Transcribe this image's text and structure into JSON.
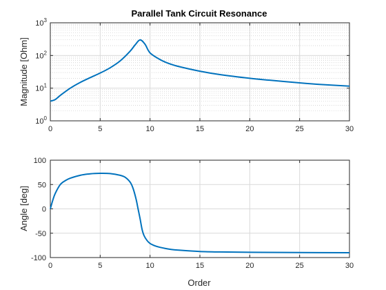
{
  "chart_data": [
    {
      "type": "line",
      "title": "Parallel Tank Circuit Resonance",
      "xlabel": "",
      "ylabel": "Magnitude [Ohm]",
      "xlim": [
        0,
        30
      ],
      "ylim": [
        1,
        1000
      ],
      "yscale": "log",
      "grid": true,
      "minor_grid": true,
      "xticks": [
        "0",
        "5",
        "10",
        "15",
        "20",
        "25",
        "30"
      ],
      "yticks": [
        {
          "base": "10",
          "exp": "0"
        },
        {
          "base": "10",
          "exp": "1"
        },
        {
          "base": "10",
          "exp": "2"
        },
        {
          "base": "10",
          "exp": "3"
        }
      ],
      "line_color": "#0072BD",
      "series": [
        {
          "x": [
            0,
            0.5,
            1,
            2,
            3,
            4,
            5,
            6,
            7,
            8,
            8.5,
            9,
            9.5,
            10,
            11,
            12,
            13,
            15,
            17,
            20,
            22,
            25,
            27,
            30
          ],
          "y": [
            4,
            4.5,
            6,
            10,
            15,
            21,
            29,
            42,
            68,
            135,
            210,
            300,
            220,
            120,
            75,
            55,
            45,
            33,
            26,
            20,
            17.5,
            14.5,
            13,
            11.5
          ]
        }
      ]
    },
    {
      "type": "line",
      "title": "",
      "xlabel": "Order",
      "ylabel": "Angle [deg]",
      "xlim": [
        0,
        30
      ],
      "ylim": [
        -100,
        100
      ],
      "grid": true,
      "xticks": [
        "0",
        "5",
        "10",
        "15",
        "20",
        "25",
        "30"
      ],
      "yticks": [
        "-100",
        "-50",
        "0",
        "50",
        "100"
      ],
      "line_color": "#0072BD",
      "series": [
        {
          "x": [
            0,
            0.25,
            0.5,
            1,
            1.5,
            2,
            3,
            4,
            5,
            6,
            7,
            7.5,
            8,
            8.3,
            8.6,
            8.8,
            9,
            9.2,
            9.4,
            9.7,
            10,
            10.5,
            11,
            12,
            13,
            15,
            17,
            20,
            25,
            30
          ],
          "y": [
            0,
            18,
            32,
            50,
            58,
            63,
            69,
            72,
            73,
            72.5,
            69,
            65,
            55,
            42,
            20,
            0,
            -20,
            -42,
            -55,
            -65,
            -71,
            -76,
            -79,
            -83,
            -85,
            -87.5,
            -88.5,
            -89.2,
            -89.7,
            -90
          ]
        }
      ]
    }
  ]
}
